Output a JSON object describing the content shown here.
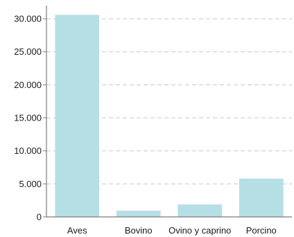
{
  "chart_data": {
    "type": "bar",
    "categories": [
      "Aves",
      "Bovino",
      "Ovino y caprino",
      "Porcino"
    ],
    "values": [
      30600,
      950,
      1900,
      5800
    ],
    "ylim": [
      0,
      32000
    ],
    "yticks": [
      0,
      5000,
      10000,
      15000,
      20000,
      25000,
      30000
    ],
    "ytick_labels": [
      "0",
      "5.000",
      "10.000",
      "15.000",
      "20.000",
      "25.000",
      "30.000"
    ],
    "grid": true,
    "bar_color": "#b5dfe5",
    "grid_color": "#c8c8c8",
    "axis_color": "#7a7a7a"
  }
}
